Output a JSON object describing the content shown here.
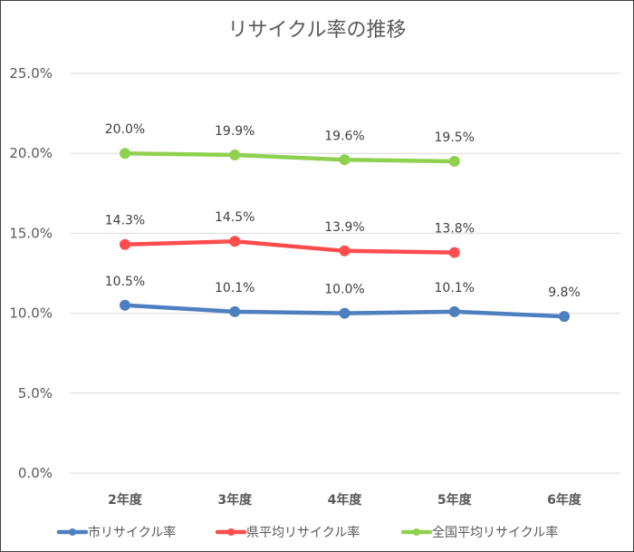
{
  "chart_data": {
    "type": "line",
    "title": "リサイクル率の推移",
    "categories": [
      "2年度",
      "3年度",
      "4年度",
      "5年度",
      "6年度"
    ],
    "ylim": [
      0,
      25
    ],
    "yticks": [
      "0.0%",
      "5.0%",
      "10.0%",
      "15.0%",
      "20.0%",
      "25.0%"
    ],
    "grid": true,
    "legend": "bottom",
    "series": [
      {
        "name": "市リサイクル率",
        "color": "#4e7fc0",
        "values": [
          10.5,
          10.1,
          10.0,
          10.1,
          9.8
        ],
        "labels": [
          "10.5%",
          "10.1%",
          "10.0%",
          "10.1%",
          "9.8%"
        ]
      },
      {
        "name": "県平均リサイクル率",
        "color": "#ff4d4d",
        "values": [
          14.3,
          14.5,
          13.9,
          13.8,
          null
        ],
        "labels": [
          "14.3%",
          "14.5%",
          "13.9%",
          "13.8%",
          null
        ]
      },
      {
        "name": "全国平均リサイクル率",
        "color": "#8fd14f",
        "values": [
          20.0,
          19.9,
          19.6,
          19.5,
          null
        ],
        "labels": [
          "20.0%",
          "19.9%",
          "19.6%",
          "19.5%",
          null
        ]
      }
    ]
  }
}
